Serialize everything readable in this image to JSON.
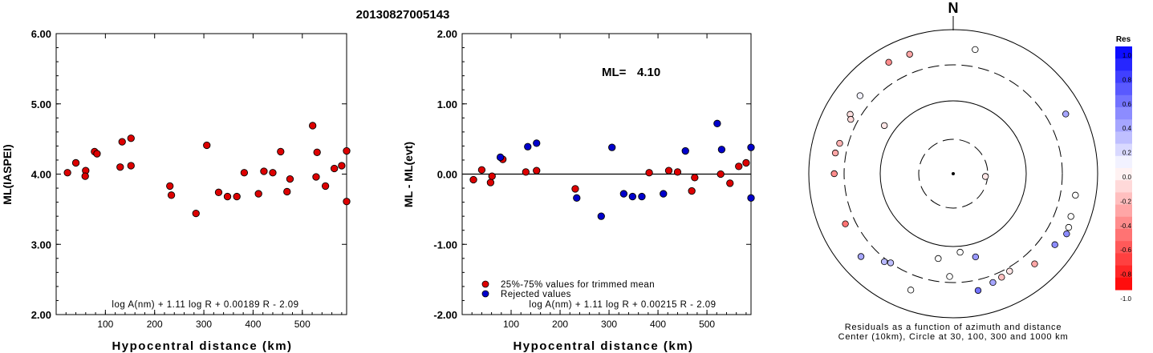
{
  "title": "20130827005143",
  "left_plot": {
    "ylabel": "ML(IASPEI)",
    "xlabel": "Hypocentral distance (km)",
    "formula": "log A(nm) + 1.11 log R + 0.00189 R - 2.09",
    "yticks": [
      "6.00",
      "5.00",
      "4.00",
      "3.00",
      "2.00"
    ],
    "xticks": [
      "100",
      "200",
      "300",
      "400",
      "500"
    ]
  },
  "middle_plot": {
    "ylabel": "ML - ML(evt)",
    "xlabel": "Hypocentral distance (km)",
    "ml_label": "ML=",
    "ml_value": "4.10",
    "legend_trimmed": "25%-75% values for trimmed mean",
    "legend_rejected": "Rejected values",
    "formula": "log A(nm) + 1.11 log R + 0.00215 R - 2.09",
    "yticks": [
      "2.00",
      "1.00",
      "0.00",
      "-1.00",
      "-2.00"
    ],
    "xticks": [
      "100",
      "200",
      "300",
      "400",
      "500"
    ]
  },
  "polar_plot": {
    "north_label": "N",
    "caption_line1": "Residuals as a function of azimuth and distance",
    "caption_line2": "Center (10km), Circle at 30, 100, 300 and 1000 km",
    "colorbar_title": "Res",
    "colorbar_ticks": [
      "1.0",
      "0.8",
      "0.6",
      "0.4",
      "0.2",
      "0.0",
      "-0.2",
      "-0.4",
      "-0.6",
      "-0.8",
      "-1.0"
    ]
  },
  "colors": {
    "trimmed": "#dd0000",
    "rejected": "#0000cc"
  },
  "chart_data": [
    {
      "type": "scatter",
      "ylabel": "ML(IASPEI)",
      "xlabel": "Hypocentral distance (km)",
      "xlim": [
        0,
        590
      ],
      "ylim": [
        2.0,
        6.0
      ],
      "points": [
        [
          23,
          4.02
        ],
        [
          40,
          4.16
        ],
        [
          60,
          4.05
        ],
        [
          59,
          3.97
        ],
        [
          78,
          4.32
        ],
        [
          83,
          4.29
        ],
        [
          130,
          4.1
        ],
        [
          134,
          4.46
        ],
        [
          152,
          4.51
        ],
        [
          152,
          4.12
        ],
        [
          231,
          3.83
        ],
        [
          234,
          3.7
        ],
        [
          284,
          3.44
        ],
        [
          306,
          4.41
        ],
        [
          330,
          3.74
        ],
        [
          348,
          3.68
        ],
        [
          367,
          3.68
        ],
        [
          382,
          4.02
        ],
        [
          411,
          3.72
        ],
        [
          422,
          4.04
        ],
        [
          440,
          4.02
        ],
        [
          456,
          4.32
        ],
        [
          469,
          3.75
        ],
        [
          475,
          3.93
        ],
        [
          521,
          4.69
        ],
        [
          528,
          3.96
        ],
        [
          530,
          4.31
        ],
        [
          547,
          3.83
        ],
        [
          565,
          4.08
        ],
        [
          580,
          4.12
        ],
        [
          590,
          4.33
        ],
        [
          590,
          3.61
        ]
      ]
    },
    {
      "type": "scatter",
      "ylabel": "ML - ML(evt)",
      "xlabel": "Hypocentral distance (km)",
      "xlim": [
        0,
        590
      ],
      "ylim": [
        -2.0,
        2.0
      ],
      "series": [
        {
          "name": "25%-75% values for trimmed mean",
          "points": [
            [
              23,
              -0.08
            ],
            [
              40,
              0.06
            ],
            [
              58,
              -0.12
            ],
            [
              61,
              -0.03
            ],
            [
              83,
              0.21
            ],
            [
              130,
              0.03
            ],
            [
              152,
              0.05
            ],
            [
              231,
              -0.21
            ],
            [
              382,
              0.02
            ],
            [
              422,
              0.05
            ],
            [
              440,
              0.03
            ],
            [
              469,
              -0.24
            ],
            [
              475,
              -0.05
            ],
            [
              528,
              0.0
            ],
            [
              547,
              -0.13
            ],
            [
              565,
              0.11
            ],
            [
              580,
              0.16
            ]
          ]
        },
        {
          "name": "Rejected values",
          "points": [
            [
              78,
              0.24
            ],
            [
              134,
              0.39
            ],
            [
              152,
              0.44
            ],
            [
              234,
              -0.34
            ],
            [
              284,
              -0.6
            ],
            [
              306,
              0.38
            ],
            [
              330,
              -0.28
            ],
            [
              348,
              -0.32
            ],
            [
              367,
              -0.32
            ],
            [
              411,
              -0.28
            ],
            [
              456,
              0.33
            ],
            [
              521,
              0.72
            ],
            [
              530,
              0.35
            ],
            [
              590,
              0.38
            ],
            [
              590,
              -0.34
            ]
          ]
        }
      ]
    },
    {
      "type": "scatter",
      "subtype": "polar",
      "rings_km": [
        30,
        100,
        300,
        1000
      ],
      "center_km": 10,
      "colorbar_range": [
        -1.0,
        1.0
      ],
      "points": [
        {
          "az": 330,
          "dist": 590,
          "res": -0.45
        },
        {
          "az": 340,
          "dist": 560,
          "res": -0.35
        },
        {
          "az": 10,
          "dist": 540,
          "res": 0.0
        },
        {
          "az": 310,
          "dist": 460,
          "res": 0.05
        },
        {
          "az": 300,
          "dist": 420,
          "res": -0.12
        },
        {
          "az": 298,
          "dist": 380,
          "res": -0.15
        },
        {
          "az": 285,
          "dist": 400,
          "res": -0.3
        },
        {
          "az": 280,
          "dist": 430,
          "res": -0.35
        },
        {
          "az": 270,
          "dist": 420,
          "res": -0.45
        },
        {
          "az": 305,
          "dist": 140,
          "res": -0.1
        },
        {
          "az": 95,
          "dist": 28,
          "res": -0.1
        },
        {
          "az": 245,
          "dist": 420,
          "res": -0.55
        },
        {
          "az": 62,
          "dist": 560,
          "res": 0.35
        },
        {
          "az": 100,
          "dist": 500,
          "res": 0.0
        },
        {
          "az": 115,
          "dist": 560,
          "res": 0.0
        },
        {
          "az": 118,
          "dist": 580,
          "res": 0.45
        },
        {
          "az": 110,
          "dist": 520,
          "res": 0.0
        },
        {
          "az": 218,
          "dist": 330,
          "res": 0.28
        },
        {
          "az": 215,
          "dist": 300,
          "res": 0.25
        },
        {
          "az": 175,
          "dist": 120,
          "res": 0.0
        },
        {
          "az": 165,
          "dist": 150,
          "res": 0.4
        },
        {
          "az": 190,
          "dist": 150,
          "res": 0.0
        },
        {
          "az": 125,
          "dist": 500,
          "res": 0.45
        },
        {
          "az": 150,
          "dist": 340,
          "res": -0.1
        },
        {
          "az": 155,
          "dist": 360,
          "res": -0.25
        },
        {
          "az": 160,
          "dist": 380,
          "res": 0.35
        },
        {
          "az": 168,
          "dist": 430,
          "res": 0.55
        },
        {
          "az": 138,
          "dist": 460,
          "res": -0.35
        },
        {
          "az": 182,
          "dist": 250,
          "res": 0.0
        },
        {
          "az": 200,
          "dist": 500,
          "res": 0.0
        },
        {
          "az": 228,
          "dist": 500,
          "res": 0.35
        }
      ]
    }
  ]
}
